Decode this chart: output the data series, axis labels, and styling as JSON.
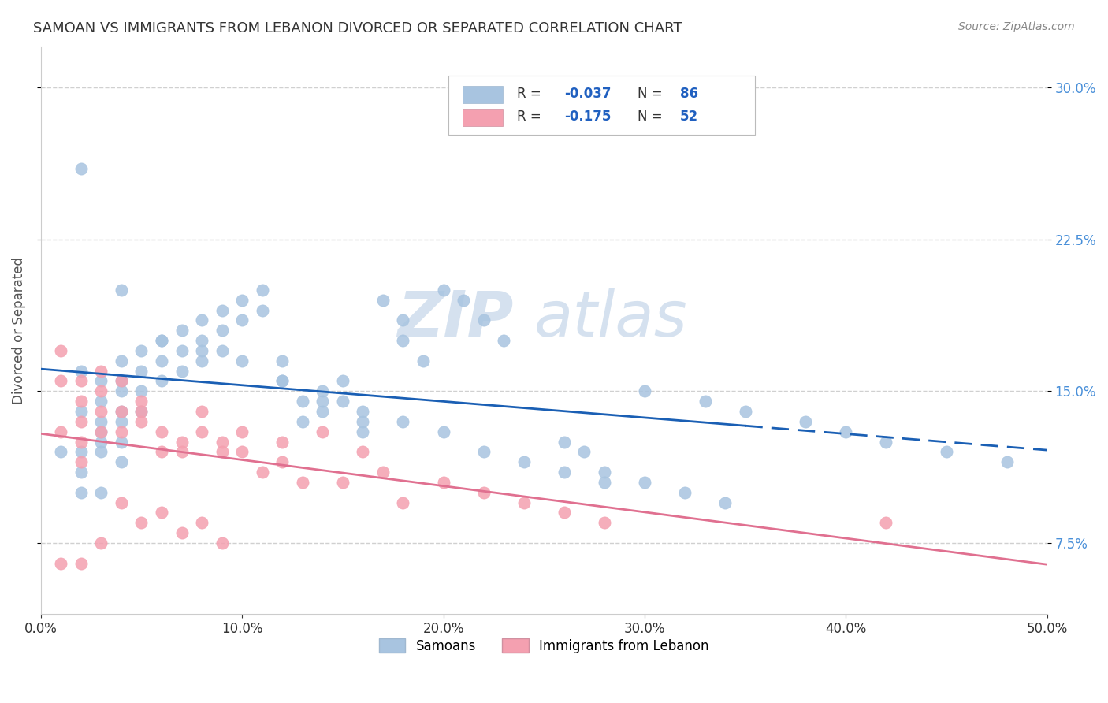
{
  "title": "SAMOAN VS IMMIGRANTS FROM LEBANON DIVORCED OR SEPARATED CORRELATION CHART",
  "source": "Source: ZipAtlas.com",
  "xlabel_ticks": [
    "0.0%",
    "10.0%",
    "20.0%",
    "30.0%",
    "40.0%",
    "50.0%"
  ],
  "xlabel_values": [
    0.0,
    0.1,
    0.2,
    0.3,
    0.4,
    0.5
  ],
  "ylabel_ticks": [
    "7.5%",
    "15.0%",
    "22.5%",
    "30.0%"
  ],
  "ylabel_values": [
    0.075,
    0.15,
    0.225,
    0.3
  ],
  "ylabel_label": "Divorced or Separated",
  "samoans_R": -0.037,
  "samoans_N": 86,
  "lebanon_R": -0.175,
  "lebanon_N": 52,
  "samoans_color": "#a8c4e0",
  "lebanon_color": "#f4a0b0",
  "samoans_line_color": "#1a5fb4",
  "lebanon_line_color": "#e07090",
  "legend_samoans": "Samoans",
  "legend_lebanon": "Immigrants from Lebanon",
  "watermark_zip": "ZIP",
  "watermark_atlas": "atlas",
  "samoans_x": [
    0.01,
    0.02,
    0.02,
    0.02,
    0.02,
    0.02,
    0.03,
    0.03,
    0.03,
    0.03,
    0.03,
    0.03,
    0.03,
    0.04,
    0.04,
    0.04,
    0.04,
    0.04,
    0.04,
    0.04,
    0.05,
    0.05,
    0.05,
    0.05,
    0.06,
    0.06,
    0.06,
    0.07,
    0.07,
    0.07,
    0.08,
    0.08,
    0.08,
    0.09,
    0.09,
    0.09,
    0.1,
    0.1,
    0.11,
    0.11,
    0.12,
    0.12,
    0.13,
    0.13,
    0.14,
    0.14,
    0.15,
    0.15,
    0.16,
    0.16,
    0.17,
    0.18,
    0.18,
    0.19,
    0.2,
    0.21,
    0.22,
    0.23,
    0.26,
    0.27,
    0.28,
    0.3,
    0.32,
    0.34,
    0.02,
    0.04,
    0.06,
    0.08,
    0.1,
    0.12,
    0.14,
    0.16,
    0.18,
    0.2,
    0.22,
    0.24,
    0.26,
    0.28,
    0.3,
    0.33,
    0.35,
    0.38,
    0.4,
    0.42,
    0.45,
    0.48
  ],
  "samoans_y": [
    0.12,
    0.16,
    0.14,
    0.12,
    0.11,
    0.1,
    0.155,
    0.145,
    0.135,
    0.13,
    0.125,
    0.12,
    0.1,
    0.165,
    0.155,
    0.15,
    0.14,
    0.135,
    0.125,
    0.115,
    0.17,
    0.16,
    0.15,
    0.14,
    0.175,
    0.165,
    0.155,
    0.18,
    0.17,
    0.16,
    0.185,
    0.175,
    0.165,
    0.19,
    0.18,
    0.17,
    0.195,
    0.185,
    0.2,
    0.19,
    0.165,
    0.155,
    0.145,
    0.135,
    0.15,
    0.14,
    0.155,
    0.145,
    0.135,
    0.13,
    0.195,
    0.185,
    0.175,
    0.165,
    0.2,
    0.195,
    0.185,
    0.175,
    0.125,
    0.12,
    0.11,
    0.105,
    0.1,
    0.095,
    0.26,
    0.2,
    0.175,
    0.17,
    0.165,
    0.155,
    0.145,
    0.14,
    0.135,
    0.13,
    0.12,
    0.115,
    0.11,
    0.105,
    0.15,
    0.145,
    0.14,
    0.135,
    0.13,
    0.125,
    0.12,
    0.115
  ],
  "lebanon_x": [
    0.01,
    0.01,
    0.01,
    0.02,
    0.02,
    0.02,
    0.02,
    0.02,
    0.03,
    0.03,
    0.03,
    0.03,
    0.04,
    0.04,
    0.04,
    0.05,
    0.05,
    0.05,
    0.06,
    0.06,
    0.07,
    0.07,
    0.08,
    0.08,
    0.09,
    0.09,
    0.1,
    0.1,
    0.11,
    0.12,
    0.12,
    0.13,
    0.14,
    0.15,
    0.16,
    0.17,
    0.18,
    0.2,
    0.22,
    0.24,
    0.26,
    0.28,
    0.01,
    0.02,
    0.03,
    0.04,
    0.05,
    0.06,
    0.07,
    0.08,
    0.09,
    0.42
  ],
  "lebanon_y": [
    0.17,
    0.155,
    0.13,
    0.155,
    0.145,
    0.135,
    0.125,
    0.115,
    0.16,
    0.15,
    0.14,
    0.13,
    0.155,
    0.14,
    0.13,
    0.145,
    0.14,
    0.135,
    0.13,
    0.12,
    0.125,
    0.12,
    0.14,
    0.13,
    0.125,
    0.12,
    0.13,
    0.12,
    0.11,
    0.125,
    0.115,
    0.105,
    0.13,
    0.105,
    0.12,
    0.11,
    0.095,
    0.105,
    0.1,
    0.095,
    0.09,
    0.085,
    0.065,
    0.065,
    0.075,
    0.095,
    0.085,
    0.09,
    0.08,
    0.085,
    0.075,
    0.085
  ],
  "xlim": [
    0.0,
    0.5
  ],
  "ylim": [
    0.04,
    0.32
  ],
  "figsize": [
    14.06,
    8.92
  ],
  "dpi": 100,
  "background_color": "#ffffff",
  "grid_color": "#d0d0d0",
  "legend_text_blue": "#2060c0",
  "sam_line_solid_end": 0.35,
  "leb_line_end": 0.5
}
